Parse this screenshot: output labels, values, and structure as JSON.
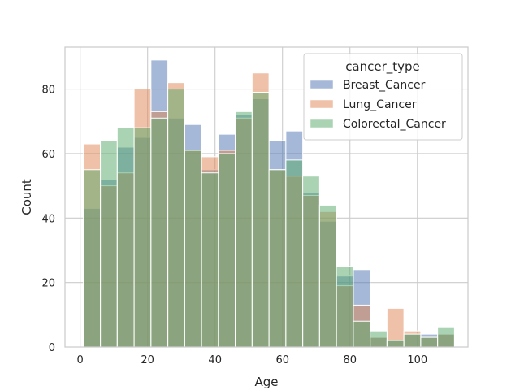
{
  "chart_data": {
    "type": "bar",
    "title": "",
    "xlabel": "Age",
    "ylabel": "Count",
    "xlim": [
      -4.5,
      115
    ],
    "ylim": [
      0,
      93
    ],
    "xticks": [
      0,
      20,
      40,
      60,
      80,
      100
    ],
    "yticks": [
      0,
      20,
      40,
      60,
      80
    ],
    "grid": true,
    "legend_title": "cancer_type",
    "legend_position": "top-right",
    "bin_edges": [
      1,
      6,
      11,
      16,
      21,
      26,
      31,
      36,
      41,
      46,
      51,
      56,
      61,
      66,
      71,
      76,
      81,
      86,
      91,
      96,
      101,
      106,
      111
    ],
    "series": [
      {
        "name": "Breast_Cancer",
        "color": "#4c72b0",
        "values": [
          43,
          52,
          62,
          65,
          89,
          71,
          69,
          55,
          66,
          72,
          77,
          64,
          67,
          48,
          39,
          22,
          24,
          3,
          2,
          4,
          4,
          4
        ]
      },
      {
        "name": "Lung_Cancer",
        "color": "#dd8452",
        "values": [
          63,
          50,
          54,
          80,
          73,
          82,
          61,
          59,
          61,
          71,
          85,
          55,
          53,
          47,
          42,
          19,
          13,
          3,
          12,
          5,
          3,
          4
        ]
      },
      {
        "name": "Colorectal_Cancer",
        "color": "#55a868",
        "values": [
          55,
          64,
          68,
          68,
          71,
          80,
          61,
          54,
          60,
          73,
          79,
          55,
          58,
          53,
          44,
          25,
          8,
          5,
          2,
          4,
          3,
          6
        ]
      }
    ]
  }
}
